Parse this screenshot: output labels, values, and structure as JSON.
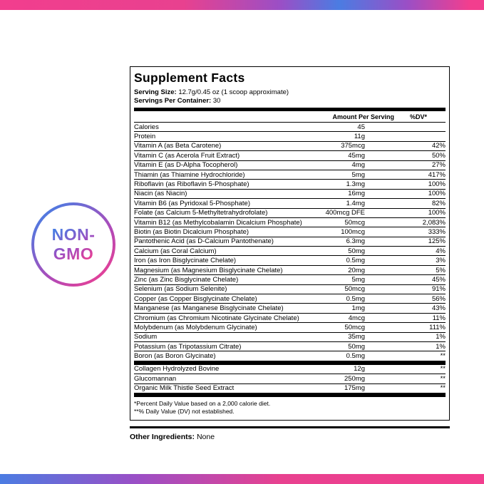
{
  "badge": {
    "line1": "NON-",
    "line2": "GMO"
  },
  "panel": {
    "title": "Supplement Facts",
    "serving_size_label": "Serving Size:",
    "serving_size_value": "12.7g/0.45 oz (1 scoop approximate)",
    "servings_label": "Servings Per Container:",
    "servings_value": "30",
    "col_amount": "Amount Per Serving",
    "col_dv": "%DV*",
    "rows": [
      {
        "name": "Calories",
        "amount": "45",
        "dv": ""
      },
      {
        "name": "Protein",
        "amount": "11g",
        "dv": ""
      },
      {
        "name": "Vitamin A (as Beta Carotene)",
        "amount": "375mcg",
        "dv": "42%"
      },
      {
        "name": "Vitamin C (as Acerola Fruit Extract)",
        "amount": "45mg",
        "dv": "50%"
      },
      {
        "name": "Vitamin E (as D-Alpha Tocopherol)",
        "amount": "4mg",
        "dv": "27%"
      },
      {
        "name": "Thiamin (as Thiamine Hydrochloride)",
        "amount": "5mg",
        "dv": "417%"
      },
      {
        "name": "Riboflavin (as Riboflavin 5-Phosphate)",
        "amount": "1.3mg",
        "dv": "100%"
      },
      {
        "name": "Niacin (as Niacin)",
        "amount": "16mg",
        "dv": "100%"
      },
      {
        "name": "Vitamin B6 (as Pyridoxal 5-Phosphate)",
        "amount": "1.4mg",
        "dv": "82%"
      },
      {
        "name": "Folate (as Calcium 5-Methyltetrahydrofolate)",
        "amount": "400mcg DFE",
        "dv": "100%"
      },
      {
        "name": "Vitamin B12 (as Methylcobalamin Dicalcium Phosphate)",
        "amount": "50mcg",
        "dv": "2,083%"
      },
      {
        "name": "Biotin (as Biotin Dicalcium Phosphate)",
        "amount": "100mcg",
        "dv": "333%"
      },
      {
        "name": "Pantothenic Acid (as D-Calcium Pantothenate)",
        "amount": "6.3mg",
        "dv": "125%"
      },
      {
        "name": "Calcium (as Coral Calcium)",
        "amount": "50mg",
        "dv": "4%"
      },
      {
        "name": "Iron (as Iron Bisglycinate Chelate)",
        "amount": "0.5mg",
        "dv": "3%"
      },
      {
        "name": "Magnesium (as Magnesium Bisglycinate Chelate)",
        "amount": "20mg",
        "dv": "5%"
      },
      {
        "name": "Zinc (as Zinc Bisglycinate Chelate)",
        "amount": "5mg",
        "dv": "45%"
      },
      {
        "name": "Selenium (as Sodium Selenite)",
        "amount": "50mcg",
        "dv": "91%"
      },
      {
        "name": "Copper (as Copper Bisglycinate Chelate)",
        "amount": "0.5mg",
        "dv": "56%"
      },
      {
        "name": "Manganese (as Manganese Bisglycinate Chelate)",
        "amount": "1mg",
        "dv": "43%"
      },
      {
        "name": "Chromium (as Chromium Nicotinate Glycinate Chelate)",
        "amount": "4mcg",
        "dv": "11%"
      },
      {
        "name": "Molybdenum (as Molybdenum Glycinate)",
        "amount": "50mcg",
        "dv": "111%"
      },
      {
        "name": "Sodium",
        "amount": "35mg",
        "dv": "1%"
      },
      {
        "name": "Potassium (as Tripotassium Citrate)",
        "amount": "50mg",
        "dv": "1%"
      },
      {
        "name": "Boron (as Boron Glycinate)",
        "amount": "0.5mg",
        "dv": "**"
      }
    ],
    "extra_rows": [
      {
        "name": "Collagen Hydrolyzed Bovine",
        "amount": "12g",
        "dv": "**"
      },
      {
        "name": "Glucomannan",
        "amount": "250mg",
        "dv": "**"
      },
      {
        "name": "Organic Milk Thistle Seed Extract",
        "amount": "175mg",
        "dv": "**"
      }
    ],
    "footnotes": [
      "*Percent Daily Value based on a 2,000 calorie diet.",
      "**% Daily Value (DV) not established."
    ]
  },
  "other_ingredients": {
    "label": "Other Ingredients:",
    "value": "None"
  },
  "colors": {
    "gradient_pink": "#f23e8e",
    "gradient_purple": "#9a4fc6",
    "gradient_blue": "#4b7ce2",
    "text": "#000000",
    "background": "#ffffff"
  }
}
